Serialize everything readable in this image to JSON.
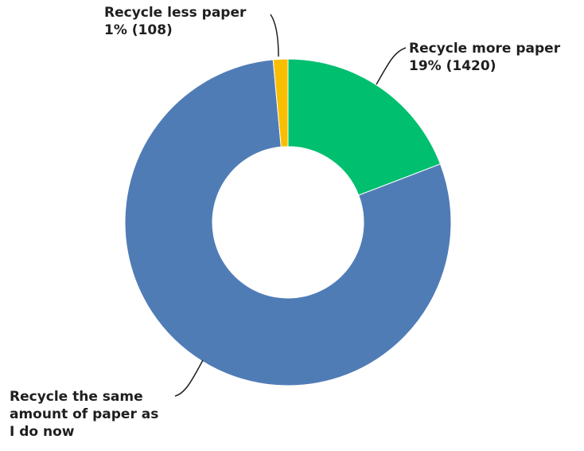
{
  "chart_data": {
    "type": "pie",
    "donut": true,
    "title": "",
    "slices": [
      {
        "label": "Recycle more paper",
        "value": 1420,
        "percent_label": "19% (1420)",
        "color": "#00bf6f",
        "label_lines": [
          "Recycle more paper",
          "19% (1420)"
        ]
      },
      {
        "label": "Recycle the same amount of paper as I do now",
        "value": 5872,
        "percent_label": "",
        "color": "#507cb6",
        "label_lines": [
          "Recycle the same",
          "amount of paper as",
          "I do now"
        ]
      },
      {
        "label": "Recycle less paper",
        "value": 108,
        "percent_label": "1% (108)",
        "color": "#f9be00",
        "label_lines": [
          "Recycle less paper",
          "1% (108)"
        ]
      }
    ]
  }
}
